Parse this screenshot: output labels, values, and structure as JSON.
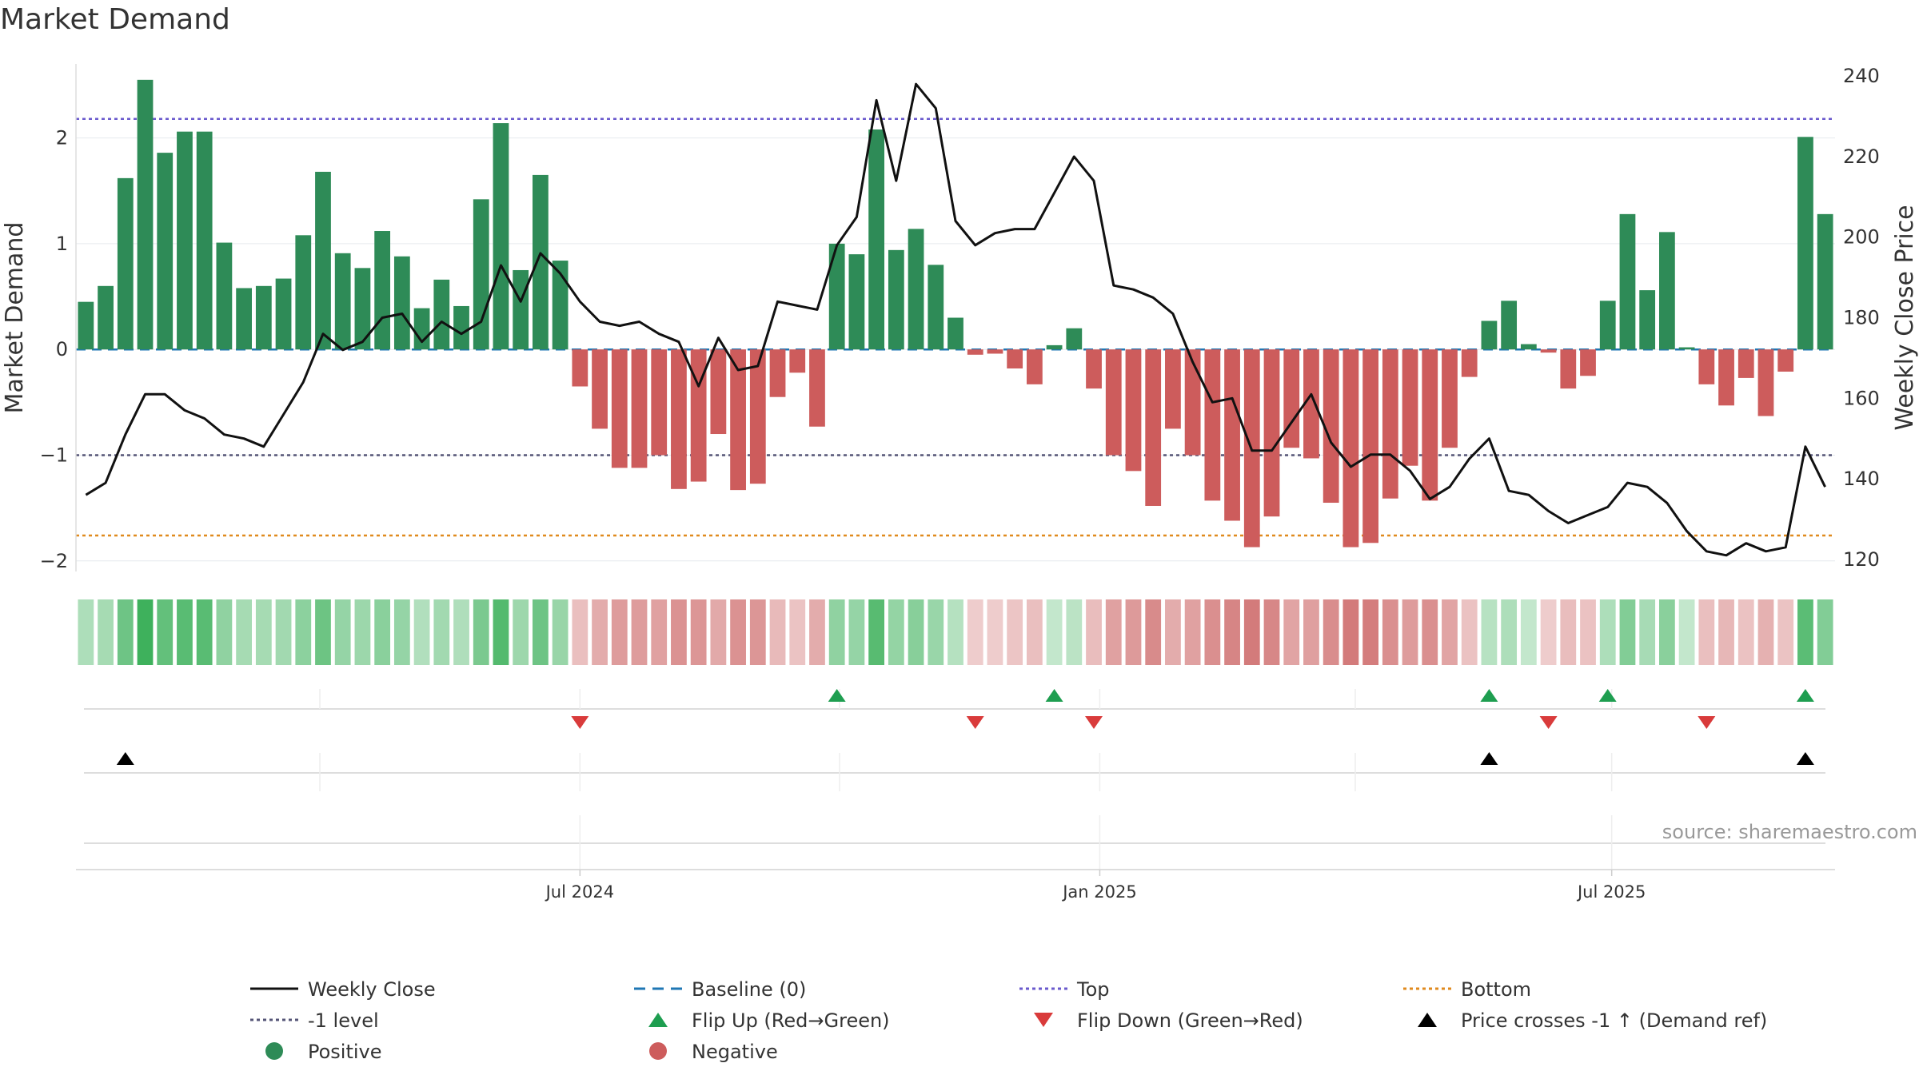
{
  "title": "Market Demand",
  "source": "source: sharemaestro.com",
  "colors": {
    "positive": "#2e8b57",
    "negative": "#cd5c5c",
    "price": "#111111",
    "baseline": "#1f77b4",
    "top": "#6a5acd",
    "bottom": "#e08a1e",
    "minus1": "#555577",
    "flip_up": "#1e9e50",
    "flip_down": "#d93b3b",
    "cross": "#000000"
  },
  "chart_data": {
    "type": "bar",
    "title": "Market Demand",
    "ylabel": "Market Demand",
    "y2label": "Weekly Close Price",
    "ylim": [
      -2.1,
      2.7
    ],
    "y2lim": [
      117,
      243
    ],
    "yticks": [
      "2",
      "1",
      "0",
      "−1",
      "−2"
    ],
    "ytick_values": [
      2,
      1,
      0,
      -1,
      -2
    ],
    "y2ticks": [
      "240",
      "220",
      "200",
      "180",
      "160",
      "140",
      "120"
    ],
    "y2tick_values": [
      240,
      220,
      200,
      180,
      160,
      140,
      120
    ],
    "x_ticks": [
      {
        "label": "Jul 2024",
        "index": 25.5
      },
      {
        "label": "Jan 2025",
        "index": 51.8
      },
      {
        "label": "Jul 2025",
        "index": 77.7
      }
    ],
    "top_level": 2.18,
    "bottom_level": -1.76,
    "minus1_level": -1,
    "demand": [
      0.45,
      0.6,
      1.62,
      2.55,
      1.86,
      2.06,
      2.06,
      1.01,
      0.58,
      0.6,
      0.67,
      1.08,
      1.68,
      0.91,
      0.77,
      1.12,
      0.88,
      0.39,
      0.66,
      0.41,
      1.42,
      2.14,
      0.75,
      1.65,
      0.84,
      -0.35,
      -0.75,
      -1.12,
      -1.12,
      -1.0,
      -1.32,
      -1.25,
      -0.8,
      -1.33,
      -1.27,
      -0.45,
      -0.22,
      -0.73,
      1.0,
      0.9,
      2.08,
      0.94,
      1.14,
      0.8,
      0.3,
      -0.05,
      -0.04,
      -0.18,
      -0.33,
      0.04,
      0.2,
      -0.37,
      -1.0,
      -1.15,
      -1.48,
      -0.75,
      -1.0,
      -1.43,
      -1.62,
      -1.87,
      -1.58,
      -0.93,
      -1.03,
      -1.45,
      -1.87,
      -1.83,
      -1.41,
      -1.1,
      -1.43,
      -0.93,
      -0.26,
      0.27,
      0.46,
      0.05,
      -0.03,
      -0.37,
      -0.25,
      0.46,
      1.28,
      0.56,
      1.11,
      0.02,
      -0.33,
      -0.53,
      -0.27,
      -0.63,
      -0.21,
      2.01,
      1.28
    ],
    "price": [
      136,
      139,
      151,
      161,
      161,
      157,
      155,
      151,
      150,
      148,
      156,
      164,
      176,
      172,
      174,
      180,
      181,
      174,
      179,
      176,
      179,
      193,
      184,
      196,
      191,
      184,
      179,
      178,
      179,
      176,
      174,
      163,
      175,
      167,
      168,
      184,
      183,
      182,
      198,
      205,
      234,
      214,
      238,
      232,
      204,
      198,
      201,
      202,
      202,
      211,
      220,
      214,
      188,
      187,
      185,
      181,
      169,
      159,
      160,
      147,
      147,
      154,
      161,
      149,
      143,
      146,
      146,
      142,
      135,
      138,
      145,
      150,
      137,
      136,
      132,
      129,
      131,
      133,
      139,
      138,
      134,
      127,
      122,
      121,
      124,
      122,
      123,
      148,
      138
    ],
    "flip_up_indices": [
      38,
      49,
      71,
      77,
      87
    ],
    "flip_down_indices": [
      25,
      45,
      51,
      74,
      82
    ],
    "cross_indices": [
      2,
      71,
      87
    ]
  },
  "legend": [
    {
      "label": "Weekly Close",
      "kind": "solid-line",
      "color_key": "price"
    },
    {
      "label": "Baseline (0)",
      "kind": "dashed-line",
      "color_key": "baseline"
    },
    {
      "label": "Top",
      "kind": "dotted-line",
      "color_key": "top"
    },
    {
      "label": "Bottom",
      "kind": "dotted-line",
      "color_key": "bottom"
    },
    {
      "label": "-1 level",
      "kind": "dotted-line",
      "color_key": "minus1"
    },
    {
      "label": "Flip Up (Red→Green)",
      "kind": "triangle-up",
      "color_key": "flip_up"
    },
    {
      "label": "Flip Down (Green→Red)",
      "kind": "triangle-down",
      "color_key": "flip_down"
    },
    {
      "label": "Price crosses -1 ↑ (Demand ref)",
      "kind": "triangle-up",
      "color_key": "cross"
    },
    {
      "label": "Positive",
      "kind": "dot",
      "color_key": "positive"
    },
    {
      "label": "Negative",
      "kind": "dot",
      "color_key": "negative"
    }
  ]
}
